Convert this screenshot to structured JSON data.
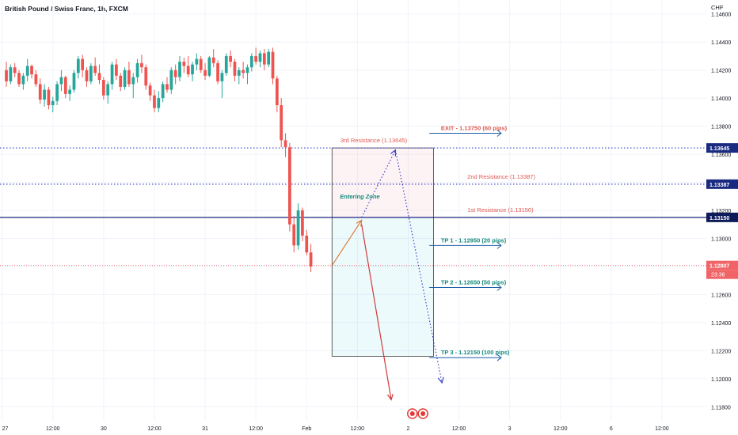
{
  "header": {
    "title": "British Pound / Swiss Franc, 1h, FXCM"
  },
  "colors": {
    "bull": "#26a69a",
    "bear": "#ef5350",
    "resistance": "#3d46c8",
    "resistance_label": "#e05a52",
    "tp": "#1f5fa8",
    "tp_label": "#14897d",
    "exit_label": "#e05a52",
    "down_arrow": "#d23a3a",
    "up_arrow": "#e07b39",
    "current": "#f06467",
    "black_line": "#1a237e"
  },
  "chart_data": {
    "type": "candlestick",
    "symbol": "British Pound / Swiss Franc",
    "timeframe": "1h",
    "source": "FXCM",
    "y_axis": {
      "currency_label": "CHF",
      "min": 1.117,
      "max": 1.147,
      "ticks": [
        "1.14600",
        "1.14400",
        "1.14200",
        "1.14000",
        "1.13800",
        "1.13600",
        "1.13400",
        "1.13200",
        "1.13000",
        "1.12800",
        "1.12600",
        "1.12400",
        "1.12200",
        "1.12000",
        "1.11800"
      ]
    },
    "x_axis": {
      "ticks": [
        {
          "label": "27",
          "bar": -1
        },
        {
          "label": "12:00",
          "bar": 11
        },
        {
          "label": "30",
          "bar": 23
        },
        {
          "label": "12:00",
          "bar": 35
        },
        {
          "label": "31",
          "bar": 47
        },
        {
          "label": "12:00",
          "bar": 59
        },
        {
          "label": "Feb",
          "bar": 71
        },
        {
          "label": "12:00",
          "bar": 83
        },
        {
          "label": "2",
          "bar": 95
        },
        {
          "label": "12:00",
          "bar": 107
        },
        {
          "label": "3",
          "bar": 119
        },
        {
          "label": "12:00",
          "bar": 131
        },
        {
          "label": "6",
          "bar": 143
        },
        {
          "label": "12:00",
          "bar": 155
        }
      ],
      "bar_count_visible": 167,
      "first_bar_offset": -1
    },
    "current_price": {
      "value": "1.12807",
      "countdown": "23:36"
    },
    "levels": [
      {
        "name": "3rd Resistance",
        "label": "3rd Resistance (1.13645)",
        "price": 1.13645,
        "tag": "1.13645",
        "style": "dotted",
        "label_bar": 79
      },
      {
        "name": "2nd Resistance",
        "label": "2nd Resistance (1.13387)",
        "price": 1.13387,
        "tag": "1.13387",
        "style": "dotted",
        "label_bar": 109
      },
      {
        "name": "1st Resistance",
        "label": "1st Resistance  (1.13150)",
        "price": 1.1315,
        "tag": "1.13150",
        "style": "solid",
        "label_bar": 109
      }
    ],
    "targets": [
      {
        "label": "EXIT - 1.13750 (60 pips)",
        "price": 1.1375,
        "kind": "exit"
      },
      {
        "label": "TP 1 - 1.12950 (20 pips)",
        "price": 1.1295,
        "kind": "tp"
      },
      {
        "label": "TP 2 - 1.12650 (50 pips)",
        "price": 1.1265,
        "kind": "tp"
      },
      {
        "label": "TP 3 - 1.12150 (100 pips)",
        "price": 1.1215,
        "kind": "tp"
      }
    ],
    "position_box": {
      "bar_start": 77,
      "bar_end": 101,
      "top": 1.13645,
      "entry": 1.1315,
      "bottom": 1.1216
    },
    "entering_zone_label": "Entering Zone",
    "projections": [
      {
        "name": "up-move",
        "style": "solid",
        "from": [
          77,
          1.12807
        ],
        "to": [
          84,
          1.1313
        ]
      },
      {
        "name": "drop",
        "style": "solid",
        "from": [
          84,
          1.131
        ],
        "to": [
          91,
          1.1185
        ]
      },
      {
        "name": "rally-path",
        "style": "dotted",
        "from": [
          84,
          1.1315
        ],
        "to": [
          92,
          1.1363
        ]
      },
      {
        "name": "fall-path",
        "style": "dotted",
        "from": [
          92,
          1.1363
        ],
        "to": [
          103,
          1.1197
        ]
      }
    ],
    "candles": [
      [
        1.142,
        1.1426,
        1.1408,
        1.1412
      ],
      [
        1.1412,
        1.1424,
        1.141,
        1.1422
      ],
      [
        1.1422,
        1.1425,
        1.1415,
        1.1418
      ],
      [
        1.1418,
        1.142,
        1.1408,
        1.141
      ],
      [
        1.141,
        1.1418,
        1.1406,
        1.1416
      ],
      [
        1.1416,
        1.1428,
        1.1412,
        1.1423
      ],
      [
        1.1423,
        1.1424,
        1.1414,
        1.1417
      ],
      [
        1.1417,
        1.142,
        1.1408,
        1.141
      ],
      [
        1.141,
        1.1414,
        1.1396,
        1.1399
      ],
      [
        1.1399,
        1.141,
        1.1394,
        1.1406
      ],
      [
        1.1406,
        1.1408,
        1.1392,
        1.1395
      ],
      [
        1.1395,
        1.1401,
        1.139,
        1.1398
      ],
      [
        1.1398,
        1.1412,
        1.1395,
        1.141
      ],
      [
        1.141,
        1.142,
        1.1405,
        1.1415
      ],
      [
        1.1415,
        1.1416,
        1.14,
        1.1403
      ],
      [
        1.1403,
        1.1409,
        1.1398,
        1.1406
      ],
      [
        1.1406,
        1.142,
        1.1404,
        1.1418
      ],
      [
        1.1418,
        1.143,
        1.1414,
        1.1428
      ],
      [
        1.1428,
        1.1431,
        1.1415,
        1.142
      ],
      [
        1.142,
        1.1422,
        1.1408,
        1.1412
      ],
      [
        1.1412,
        1.1425,
        1.141,
        1.1423
      ],
      [
        1.1423,
        1.1429,
        1.1416,
        1.1418
      ],
      [
        1.1418,
        1.1424,
        1.141,
        1.1413
      ],
      [
        1.1413,
        1.1415,
        1.1399,
        1.1402
      ],
      [
        1.1402,
        1.1412,
        1.1396,
        1.141
      ],
      [
        1.141,
        1.1426,
        1.1406,
        1.1424
      ],
      [
        1.1424,
        1.1428,
        1.1413,
        1.1416
      ],
      [
        1.1416,
        1.1418,
        1.1405,
        1.1408
      ],
      [
        1.1408,
        1.1422,
        1.1406,
        1.142
      ],
      [
        1.142,
        1.1426,
        1.1408,
        1.141
      ],
      [
        1.141,
        1.1418,
        1.14,
        1.1415
      ],
      [
        1.1415,
        1.1428,
        1.1411,
        1.1425
      ],
      [
        1.1425,
        1.1431,
        1.1418,
        1.1422
      ],
      [
        1.1422,
        1.1424,
        1.1406,
        1.1409
      ],
      [
        1.1409,
        1.1411,
        1.1398,
        1.1402
      ],
      [
        1.1402,
        1.1406,
        1.139,
        1.1393
      ],
      [
        1.1393,
        1.1405,
        1.139,
        1.14
      ],
      [
        1.14,
        1.1412,
        1.1397,
        1.141
      ],
      [
        1.141,
        1.1415,
        1.1404,
        1.1406
      ],
      [
        1.1406,
        1.1422,
        1.1403,
        1.142
      ],
      [
        1.142,
        1.1424,
        1.141,
        1.1415
      ],
      [
        1.1415,
        1.143,
        1.1412,
        1.1426
      ],
      [
        1.1426,
        1.1429,
        1.1418,
        1.1423
      ],
      [
        1.1423,
        1.143,
        1.1415,
        1.1417
      ],
      [
        1.1417,
        1.1426,
        1.1412,
        1.1424
      ],
      [
        1.1424,
        1.1432,
        1.142,
        1.1428
      ],
      [
        1.1428,
        1.143,
        1.1418,
        1.142
      ],
      [
        1.142,
        1.1425,
        1.1413,
        1.1416
      ],
      [
        1.1416,
        1.143,
        1.1415,
        1.1429
      ],
      [
        1.1429,
        1.1435,
        1.1422,
        1.1425
      ],
      [
        1.1425,
        1.1427,
        1.141,
        1.1412
      ],
      [
        1.1412,
        1.142,
        1.14,
        1.1418
      ],
      [
        1.1418,
        1.1432,
        1.1416,
        1.143
      ],
      [
        1.143,
        1.1434,
        1.1422,
        1.1426
      ],
      [
        1.1426,
        1.1428,
        1.1412,
        1.1416
      ],
      [
        1.1416,
        1.1422,
        1.141,
        1.142
      ],
      [
        1.142,
        1.1426,
        1.1414,
        1.1418
      ],
      [
        1.1418,
        1.1424,
        1.141,
        1.1422
      ],
      [
        1.1422,
        1.1432,
        1.1419,
        1.143
      ],
      [
        1.143,
        1.1436,
        1.1424,
        1.1426
      ],
      [
        1.1426,
        1.1434,
        1.1422,
        1.1432
      ],
      [
        1.1432,
        1.1435,
        1.142,
        1.1424
      ],
      [
        1.1424,
        1.1435,
        1.1422,
        1.1433
      ],
      [
        1.1433,
        1.1436,
        1.141,
        1.1414
      ],
      [
        1.1414,
        1.1416,
        1.139,
        1.1395
      ],
      [
        1.1395,
        1.14,
        1.1365,
        1.137
      ],
      [
        1.137,
        1.1375,
        1.1358,
        1.1365
      ],
      [
        1.1365,
        1.1368,
        1.1305,
        1.131
      ],
      [
        1.131,
        1.1316,
        1.129,
        1.1295
      ],
      [
        1.1295,
        1.1325,
        1.1292,
        1.132
      ],
      [
        1.132,
        1.1322,
        1.1298,
        1.1302
      ],
      [
        1.1302,
        1.1306,
        1.1288,
        1.129
      ],
      [
        1.129,
        1.1296,
        1.1276,
        1.128
      ]
    ]
  }
}
